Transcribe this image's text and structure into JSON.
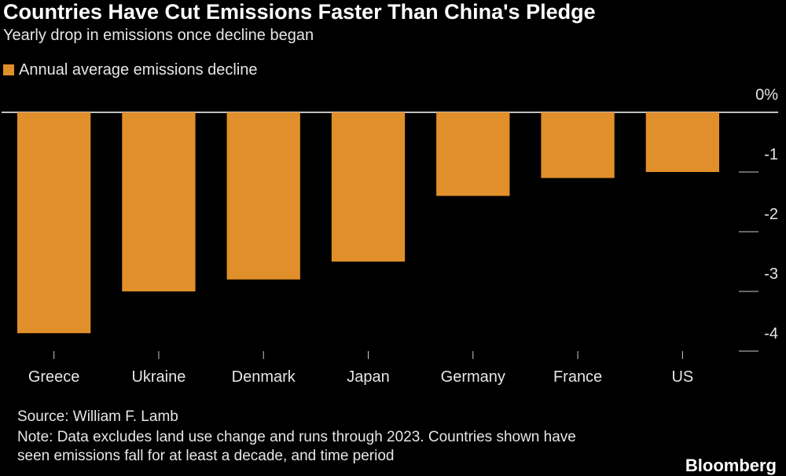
{
  "chart_data": {
    "type": "bar",
    "title": "Countries Have Cut Emissions Faster Than China's Pledge",
    "subtitle": "Yearly drop in emissions once decline began",
    "categories": [
      "Greece",
      "Ukraine",
      "Denmark",
      "Japan",
      "Germany",
      "France",
      "US"
    ],
    "series": [
      {
        "name": "Annual average emissions decline",
        "color": "#e08f2a",
        "values": [
          -3.7,
          -3.0,
          -2.8,
          -2.5,
          -1.4,
          -1.1,
          -1.0
        ]
      }
    ],
    "ylim": [
      -4,
      0
    ],
    "yticks": [
      {
        "value": 0,
        "label": "0%"
      },
      -1,
      -2,
      -3,
      -4
    ],
    "source": "Source: William F. Lamb",
    "note": "Note: Data excludes land use change and runs through 2023. Countries shown have seen emissions fall for at least a decade, and time period",
    "brand": "Bloomberg"
  }
}
